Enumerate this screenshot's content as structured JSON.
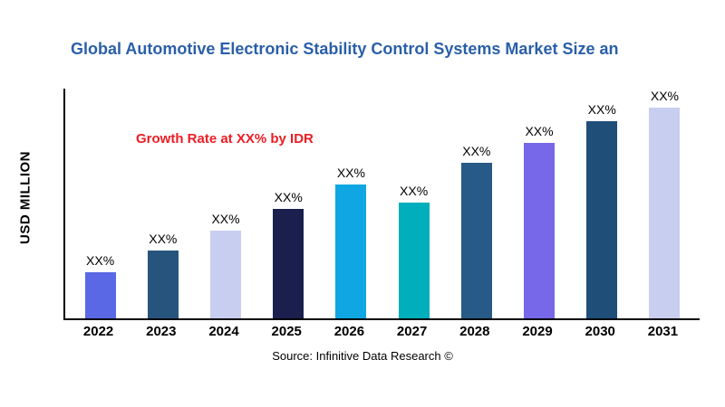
{
  "title": "Global Automotive Electronic Stability Control Systems Market Size an",
  "annotation": "Growth Rate at XX% by IDR",
  "source": "Source: Infinitive Data Research ©",
  "chart_data": {
    "type": "bar",
    "title": "Global Automotive Electronic Stability Control Systems Market Size an",
    "xlabel": "",
    "ylabel": "USD MILLION",
    "categories": [
      "2022",
      "2023",
      "2024",
      "2025",
      "2026",
      "2027",
      "2028",
      "2029",
      "2030",
      "2031"
    ],
    "values": [
      21,
      31,
      40,
      50,
      61,
      53,
      71,
      80,
      90,
      100
    ],
    "bar_labels": [
      "XX%",
      "XX%",
      "XX%",
      "XX%",
      "XX%",
      "XX%",
      "XX%",
      "XX%",
      "XX%",
      "XX%"
    ],
    "bar_colors": [
      "#5b68e6",
      "#27547d",
      "#c8cef0",
      "#1b1f4d",
      "#0fa6e3",
      "#00aebc",
      "#275a86",
      "#7668e8",
      "#1f4e79",
      "#c8cef0"
    ],
    "ylim": [
      0,
      105
    ],
    "grid": false,
    "legend": false,
    "annotation": "Growth Rate at XX% by IDR",
    "annotation_color": "#ed1c24",
    "title_color": "#2a5fa8",
    "source": "Source: Infinitive Data Research ©"
  }
}
